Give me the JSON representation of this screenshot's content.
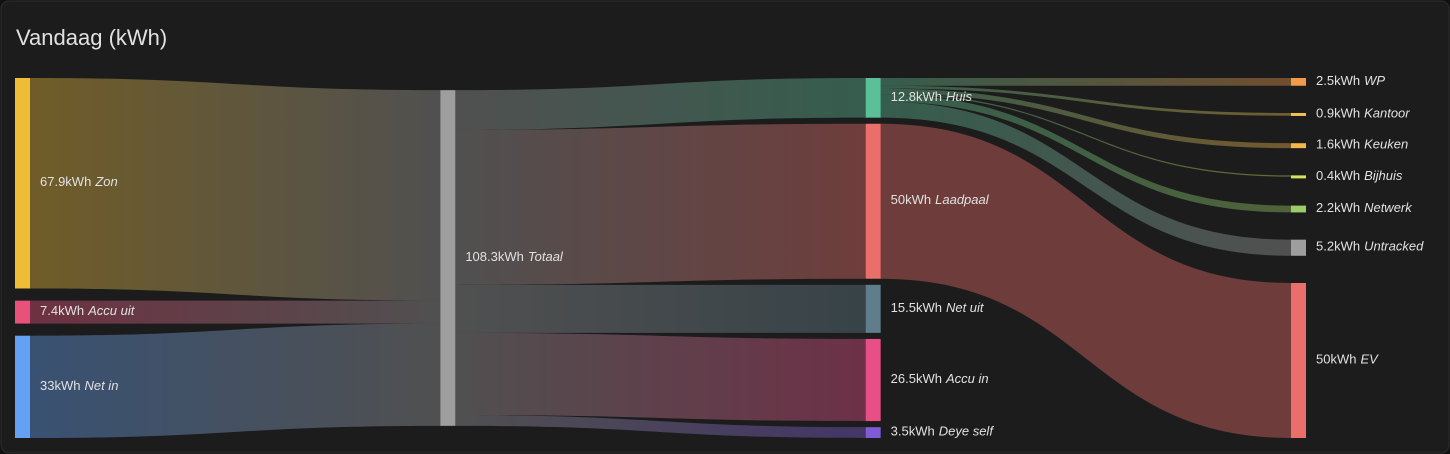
{
  "chart_data": {
    "type": "sankey",
    "title": "Vandaag (kWh)",
    "columns": [
      [
        {
          "name": "Zon",
          "value": 67.9,
          "value_label": "67.9kWh",
          "color": "#edbd38"
        },
        {
          "name": "Accu uit",
          "value": 7.4,
          "value_label": "7.4kWh",
          "color": "#e8527a"
        },
        {
          "name": "Net in",
          "value": 33,
          "value_label": "33kWh",
          "color": "#64a1f4"
        }
      ],
      [
        {
          "name": "Totaal",
          "value": 108.3,
          "value_label": "108.3kWh",
          "color": "#9e9e9e"
        }
      ],
      [
        {
          "name": "Huis",
          "value": 12.8,
          "value_label": "12.8kWh",
          "color": "#5bbf98"
        },
        {
          "name": "Laadpaal",
          "value": 50,
          "value_label": "50kWh",
          "color": "#ea6f6a"
        },
        {
          "name": "Net uit",
          "value": 15.5,
          "value_label": "15.5kWh",
          "color": "#607d8b"
        },
        {
          "name": "Accu in",
          "value": 26.5,
          "value_label": "26.5kWh",
          "color": "#e84f86"
        },
        {
          "name": "Deye self",
          "value": 3.5,
          "value_label": "3.5kWh",
          "color": "#7f5bd6"
        }
      ],
      [
        {
          "name": "WP",
          "value": 2.5,
          "value_label": "2.5kWh",
          "color": "#f09a4a"
        },
        {
          "name": "Kantoor",
          "value": 0.9,
          "value_label": "0.9kWh",
          "color": "#f0c050"
        },
        {
          "name": "Keuken",
          "value": 1.6,
          "value_label": "1.6kWh",
          "color": "#f5b54a"
        },
        {
          "name": "Bijhuis",
          "value": 0.4,
          "value_label": "0.4kWh",
          "color": "#d9e05a"
        },
        {
          "name": "Netwerk",
          "value": 2.2,
          "value_label": "2.2kWh",
          "color": "#9ccc65"
        },
        {
          "name": "Untracked",
          "value": 5.2,
          "value_label": "5.2kWh",
          "color": "#9e9e9e"
        },
        {
          "name": "EV",
          "value": 50,
          "value_label": "50kWh",
          "color": "#ea6f6a"
        }
      ]
    ],
    "links": [
      {
        "source": "Zon",
        "target": "Totaal",
        "value": 67.9
      },
      {
        "source": "Accu uit",
        "target": "Totaal",
        "value": 7.4
      },
      {
        "source": "Net in",
        "target": "Totaal",
        "value": 33
      },
      {
        "source": "Totaal",
        "target": "Huis",
        "value": 12.8
      },
      {
        "source": "Totaal",
        "target": "Laadpaal",
        "value": 50
      },
      {
        "source": "Totaal",
        "target": "Net uit",
        "value": 15.5
      },
      {
        "source": "Totaal",
        "target": "Accu in",
        "value": 26.5
      },
      {
        "source": "Totaal",
        "target": "Deye self",
        "value": 3.5
      },
      {
        "source": "Huis",
        "target": "WP",
        "value": 2.5
      },
      {
        "source": "Huis",
        "target": "Kantoor",
        "value": 0.9
      },
      {
        "source": "Huis",
        "target": "Keuken",
        "value": 1.6
      },
      {
        "source": "Huis",
        "target": "Bijhuis",
        "value": 0.4
      },
      {
        "source": "Huis",
        "target": "Netwerk",
        "value": 2.2
      },
      {
        "source": "Huis",
        "target": "Untracked",
        "value": 5.2
      },
      {
        "source": "Laadpaal",
        "target": "EV",
        "value": 50
      }
    ]
  }
}
